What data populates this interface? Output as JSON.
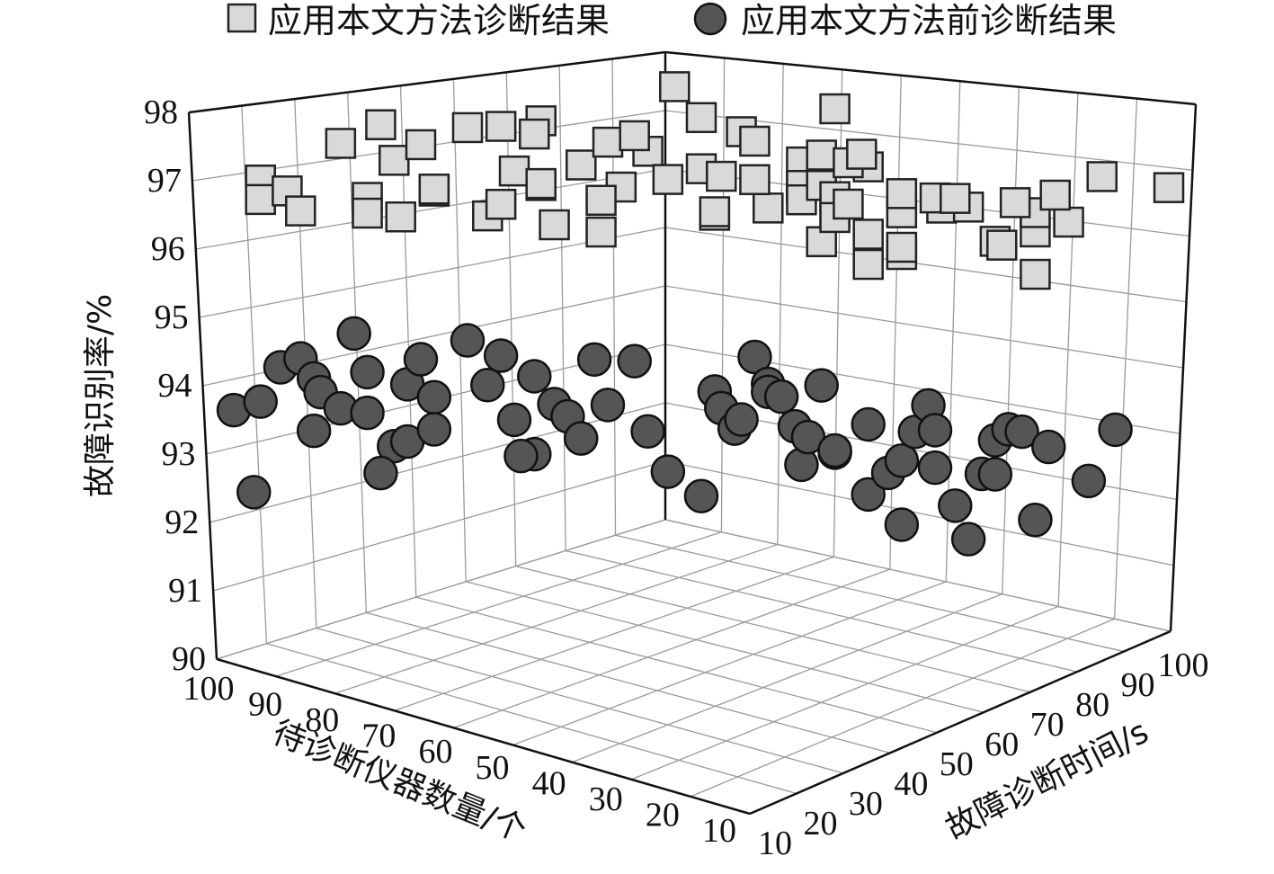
{
  "chart_data": {
    "type": "scatter",
    "dimensions": 3,
    "legend": {
      "placement": "top-center",
      "entries": [
        {
          "label": "应用本文方法诊断结果",
          "marker": "square",
          "color": "#d9d9d9"
        },
        {
          "label": "应用本文方法前诊断结果",
          "marker": "circle",
          "color": "#555555"
        }
      ]
    },
    "axes": {
      "z": {
        "label": "故障识别率/%",
        "range": [
          90,
          98
        ],
        "ticks": [
          "90",
          "91",
          "92",
          "93",
          "94",
          "95",
          "96",
          "97",
          "98"
        ]
      },
      "instruments": {
        "label": "待诊断仪器数量/个",
        "range": [
          10,
          100
        ],
        "ticks": [
          "100",
          "90",
          "80",
          "70",
          "60",
          "50",
          "40",
          "30",
          "20",
          "10"
        ]
      },
      "time": {
        "label": "故障诊断时间/s",
        "range": [
          10,
          100
        ],
        "ticks": [
          "10",
          "20",
          "30",
          "40",
          "50",
          "60",
          "70",
          "80",
          "90",
          "100"
        ]
      }
    },
    "grid": true,
    "series": [
      {
        "name": "应用本文方法诊断结果",
        "marker": "square",
        "points": [
          [
            96.0,
            94.0,
            96.6
          ],
          [
            96.0,
            91.0,
            96.3
          ],
          [
            80.0,
            95.0,
            96.3
          ],
          [
            92.0,
            96.0,
            96.4
          ],
          [
            84.0,
            96.0,
            97.2
          ],
          [
            90.0,
            92.0,
            96.1
          ],
          [
            75.0,
            92.0,
            96.0
          ],
          [
            80.0,
            88.0,
            96.1
          ],
          [
            78.0,
            98.0,
            97.5
          ],
          [
            70.0,
            84.0,
            96.5
          ],
          [
            76.0,
            85.0,
            97.0
          ],
          [
            70.0,
            88.0,
            96.5
          ],
          [
            72.0,
            93.0,
            97.2
          ],
          [
            62.0,
            83.0,
            96.1
          ],
          [
            60.0,
            82.0,
            96.3
          ],
          [
            65.0,
            91.0,
            97.5
          ],
          [
            60.0,
            94.0,
            97.5
          ],
          [
            54.0,
            93.0,
            97.6
          ],
          [
            55.0,
            90.0,
            97.4
          ],
          [
            54.0,
            83.0,
            96.6
          ],
          [
            52.0,
            78.0,
            96.0
          ],
          [
            58.0,
            88.0,
            96.8
          ],
          [
            48.0,
            88.0,
            96.9
          ],
          [
            54.0,
            87.0,
            96.6
          ],
          [
            44.0,
            85.0,
            97.3
          ],
          [
            42.0,
            80.0,
            96.6
          ],
          [
            45.0,
            78.0,
            96.4
          ],
          [
            45.0,
            76.0,
            95.9
          ],
          [
            38.0,
            78.0,
            97.2
          ],
          [
            40.0,
            86.0,
            97.4
          ],
          [
            34.0,
            88.0,
            98.2
          ],
          [
            35.0,
            83.0,
            96.7
          ],
          [
            30.0,
            86.0,
            97.7
          ],
          [
            30.0,
            80.0,
            96.9
          ],
          [
            28.0,
            73.0,
            96.2
          ],
          [
            28.0,
            68.0,
            96.3
          ],
          [
            24.0,
            81.0,
            97.5
          ],
          [
            27.0,
            77.0,
            96.8
          ],
          [
            22.0,
            73.0,
            97.4
          ],
          [
            20.0,
            75.0,
            96.3
          ],
          [
            22.0,
            70.0,
            96.8
          ],
          [
            15.0,
            68.0,
            97.1
          ],
          [
            15.0,
            64.0,
            96.7
          ],
          [
            12.0,
            70.0,
            95.8
          ],
          [
            15.0,
            58.0,
            96.8
          ],
          [
            15.0,
            67.0,
            96.5
          ],
          [
            12.0,
            55.0,
            97.3
          ],
          [
            12.0,
            58.0,
            96.8
          ],
          [
            10.0,
            54.0,
            96.4
          ],
          [
            10.0,
            48.0,
            96.7
          ],
          [
            10.0,
            45.0,
            96.4
          ],
          [
            8.0,
            46.0,
            96.6
          ],
          [
            10.0,
            60.0,
            98.0
          ],
          [
            5.0,
            57.0,
            97.1
          ],
          [
            8.0,
            52.0,
            97.2
          ],
          [
            6.0,
            57.0,
            97.3
          ],
          [
            0.0,
            48.0,
            95.8
          ],
          [
            5.0,
            38.0,
            96.2
          ],
          [
            5.0,
            31.0,
            95.8
          ],
          [
            0.0,
            54.0,
            96.4
          ],
          [
            0.0,
            38.0,
            96.0
          ],
          [
            0.0,
            41.0,
            96.8
          ],
          [
            -6.0,
            38.0,
            96.6
          ],
          [
            -10.0,
            40.0,
            96.6
          ],
          [
            -5.0,
            32.0,
            96.8
          ],
          [
            -14.0,
            37.0,
            96.1
          ],
          [
            -15.0,
            30.0,
            96.1
          ],
          [
            -20.0,
            30.0,
            96.3
          ],
          [
            -20.0,
            29.0,
            96.6
          ],
          [
            -20.0,
            14.0,
            95.8
          ],
          [
            -8.0,
            17.0,
            96.9
          ],
          [
            -25.0,
            10.0,
            96.6
          ],
          [
            -17.0,
            8.0,
            96.9
          ],
          [
            -23.0,
            24.0,
            96.9
          ],
          [
            -40.0,
            11.0,
            97.1
          ],
          [
            -30.0,
            5.0,
            97.3
          ]
        ]
      },
      {
        "name": "应用本文方法前诊断结果",
        "marker": "circle",
        "points": [
          [
            100.0,
            90.0,
            92.8
          ],
          [
            93.0,
            91.0,
            93.5
          ],
          [
            96.0,
            86.0,
            93.0
          ],
          [
            88.0,
            87.0,
            92.5
          ],
          [
            97.0,
            80.0,
            91.6
          ],
          [
            90.0,
            87.0,
            93.7
          ],
          [
            88.0,
            92.0,
            93.3
          ],
          [
            87.0,
            90.0,
            93.1
          ],
          [
            84.0,
            92.0,
            92.8
          ],
          [
            82.0,
            96.0,
            94.0
          ],
          [
            80.0,
            85.0,
            93.5
          ],
          [
            80.0,
            80.0,
            92.9
          ],
          [
            76.0,
            77.0,
            92.4
          ],
          [
            78.0,
            87.0,
            91.8
          ],
          [
            74.0,
            82.0,
            92.4
          ],
          [
            74.0,
            85.0,
            93.3
          ],
          [
            72.0,
            86.0,
            93.7
          ],
          [
            70.0,
            84.0,
            93.1
          ],
          [
            70.0,
            82.0,
            92.6
          ],
          [
            65.0,
            87.0,
            94.0
          ],
          [
            62.0,
            84.0,
            93.3
          ],
          [
            60.0,
            83.0,
            93.8
          ],
          [
            58.0,
            79.0,
            92.8
          ],
          [
            55.0,
            75.0,
            92.3
          ],
          [
            57.0,
            73.0,
            92.3
          ],
          [
            55.0,
            80.0,
            93.5
          ],
          [
            52.0,
            76.0,
            93.1
          ],
          [
            50.0,
            76.0,
            92.9
          ],
          [
            48.0,
            72.0,
            92.6
          ],
          [
            46.0,
            78.0,
            93.8
          ],
          [
            44.0,
            75.0,
            93.1
          ],
          [
            40.0,
            68.0,
            93.9
          ],
          [
            38.0,
            66.0,
            92.8
          ],
          [
            35.0,
            63.0,
            92.2
          ],
          [
            30.0,
            70.0,
            91.7
          ],
          [
            28.0,
            69.0,
            93.4
          ],
          [
            27.0,
            64.0,
            93.2
          ],
          [
            25.0,
            62.0,
            92.9
          ],
          [
            24.0,
            58.0,
            93.1
          ],
          [
            22.0,
            57.0,
            94.1
          ],
          [
            20.0,
            55.0,
            93.7
          ],
          [
            20.0,
            53.0,
            93.6
          ],
          [
            18.0,
            55.0,
            93.5
          ],
          [
            16.0,
            50.0,
            93.1
          ],
          [
            15.0,
            50.0,
            92.5
          ],
          [
            14.0,
            45.0,
            93.0
          ],
          [
            12.0,
            45.0,
            93.8
          ],
          [
            10.0,
            42.0,
            92.8
          ],
          [
            10.0,
            37.0,
            92.9
          ],
          [
            5.0,
            37.0,
            93.3
          ],
          [
            5.0,
            32.0,
            92.3
          ],
          [
            2.0,
            34.0,
            92.6
          ],
          [
            0.0,
            33.0,
            92.8
          ],
          [
            0.0,
            28.0,
            91.9
          ],
          [
            -2.0,
            28.0,
            93.3
          ],
          [
            -4.0,
            28.0,
            93.7
          ],
          [
            -5.0,
            25.0,
            92.8
          ],
          [
            -5.0,
            22.0,
            93.4
          ],
          [
            -8.0,
            20.0,
            92.3
          ],
          [
            -10.0,
            20.0,
            91.8
          ],
          [
            -12.0,
            18.0,
            92.8
          ],
          [
            -14.0,
            18.0,
            93.3
          ],
          [
            -16.0,
            15.0,
            93.5
          ],
          [
            -18.0,
            12.0,
            93.5
          ],
          [
            -20.0,
            12.0,
            92.2
          ],
          [
            -22.0,
            10.0,
            93.3
          ],
          [
            -28.0,
            10.0,
            92.8
          ],
          [
            -32.0,
            6.0,
            93.6
          ],
          [
            -14.0,
            25.0,
            92.7
          ]
        ]
      }
    ]
  }
}
